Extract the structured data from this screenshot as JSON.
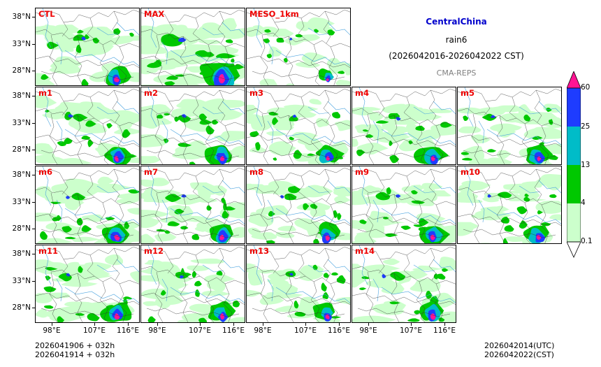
{
  "title": {
    "region": "CentralChina",
    "variable": "rain6",
    "period": "(2026042016-2026042022 CST)",
    "source": "CMA-REPS"
  },
  "panels": [
    {
      "label": "CTL",
      "seed": 1,
      "intensity": 0.9
    },
    {
      "label": "MAX",
      "seed": 2,
      "intensity": 1.7
    },
    {
      "label": "MESO_1km",
      "seed": 3,
      "intensity": 0.45
    },
    {
      "label": "m1",
      "seed": 4,
      "intensity": 0.9
    },
    {
      "label": "m2",
      "seed": 5,
      "intensity": 1.0
    },
    {
      "label": "m3",
      "seed": 6,
      "intensity": 0.8
    },
    {
      "label": "m4",
      "seed": 7,
      "intensity": 1.0
    },
    {
      "label": "m5",
      "seed": 8,
      "intensity": 0.9
    },
    {
      "label": "m6",
      "seed": 9,
      "intensity": 1.0
    },
    {
      "label": "m7",
      "seed": 10,
      "intensity": 0.95
    },
    {
      "label": "m8",
      "seed": 11,
      "intensity": 0.85
    },
    {
      "label": "m9",
      "seed": 12,
      "intensity": 0.95
    },
    {
      "label": "m10",
      "seed": 13,
      "intensity": 0.9
    },
    {
      "label": "m11",
      "seed": 14,
      "intensity": 1.0
    },
    {
      "label": "m12",
      "seed": 15,
      "intensity": 0.9
    },
    {
      "label": "m13",
      "seed": 16,
      "intensity": 0.8
    },
    {
      "label": "m14",
      "seed": 17,
      "intensity": 1.05
    }
  ],
  "axes": {
    "lat_ticks": [
      "38°N",
      "33°N",
      "28°N"
    ],
    "lon_ticks": [
      "98°E",
      "107°E",
      "116°E"
    ]
  },
  "colorbar": {
    "levels": [
      "60",
      "25",
      "13",
      "4",
      "0.1"
    ],
    "colors": [
      "#ff1493",
      "#1e3cff",
      "#00bcc8",
      "#00c800",
      "#ccffcc"
    ]
  },
  "footer": {
    "init_line1": "2026041906  +  032h",
    "init_line2": "2026041914  +  032h",
    "valid_utc": "2026042014(UTC)",
    "valid_cst": "2026042022(CST)"
  }
}
